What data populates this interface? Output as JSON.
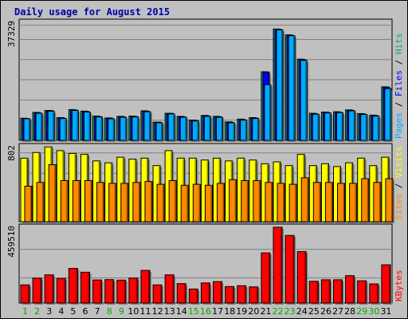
{
  "chart_data": [
    {
      "type": "bar",
      "panel": "pages-files-hits",
      "ymax_label": "37329",
      "ymax": 37329,
      "series_labels": [
        "Pages",
        "Files",
        "Hits"
      ],
      "series_colors": [
        "#00aaff",
        "#0000ff",
        "#00aa77"
      ],
      "categories": [
        "1",
        "2",
        "3",
        "4",
        "5",
        "6",
        "7",
        "8",
        "9",
        "10",
        "11",
        "12",
        "13",
        "14",
        "15",
        "16",
        "17",
        "18",
        "19",
        "20",
        "21",
        "22",
        "23",
        "24",
        "25",
        "26",
        "27",
        "28",
        "29",
        "30",
        "31"
      ],
      "series": [
        {
          "name": "Hits",
          "values": [
            7200,
            9100,
            9700,
            7400,
            10000,
            9500,
            7900,
            7300,
            7800,
            7900,
            9600,
            5900,
            8800,
            7800,
            6600,
            8100,
            7800,
            6000,
            6900,
            7400,
            22300,
            36200,
            34300,
            26400,
            8800,
            9200,
            9300,
            9900,
            8700,
            8200,
            17400
          ]
        },
        {
          "name": "Files",
          "values": [
            7100,
            9000,
            9700,
            7300,
            9900,
            9400,
            7800,
            7200,
            7700,
            7800,
            9500,
            5900,
            8800,
            7700,
            6500,
            8000,
            7700,
            5900,
            6800,
            7300,
            22200,
            36100,
            34200,
            26300,
            8700,
            9100,
            9200,
            9800,
            8600,
            8100,
            17300
          ]
        },
        {
          "name": "Pages",
          "values": [
            7000,
            8800,
            9500,
            7100,
            9700,
            9200,
            7600,
            7000,
            7500,
            7600,
            9300,
            5700,
            8600,
            7500,
            6300,
            7800,
            7500,
            5700,
            6600,
            7100,
            18100,
            35900,
            34000,
            26000,
            8500,
            8900,
            9000,
            9600,
            8400,
            7900,
            16800
          ]
        }
      ]
    },
    {
      "type": "bar",
      "panel": "visits-sites",
      "ymax_label": "802",
      "ymax": 802,
      "series_labels": [
        "Sites",
        "Visits"
      ],
      "series_colors": [
        "#ff8800",
        "#ffff00"
      ],
      "categories": [
        "1",
        "2",
        "3",
        "4",
        "5",
        "6",
        "7",
        "8",
        "9",
        "10",
        "11",
        "12",
        "13",
        "14",
        "15",
        "16",
        "17",
        "18",
        "19",
        "20",
        "21",
        "22",
        "23",
        "24",
        "25",
        "26",
        "27",
        "28",
        "29",
        "30",
        "31"
      ],
      "series": [
        {
          "name": "Visits",
          "values": [
            680,
            740,
            800,
            760,
            730,
            720,
            650,
            630,
            690,
            670,
            680,
            600,
            760,
            680,
            680,
            660,
            680,
            650,
            680,
            660,
            620,
            640,
            600,
            720,
            600,
            620,
            590,
            630,
            680,
            600,
            690
          ]
        },
        {
          "name": "Sites",
          "values": [
            380,
            420,
            610,
            440,
            440,
            440,
            420,
            410,
            410,
            420,
            430,
            400,
            440,
            390,
            400,
            390,
            410,
            450,
            440,
            440,
            420,
            410,
            400,
            470,
            420,
            420,
            410,
            410,
            460,
            420,
            460
          ]
        }
      ]
    },
    {
      "type": "bar",
      "panel": "kbytes",
      "ymax_label": "459510",
      "ymax": 459510,
      "series_labels": [
        "KBytes"
      ],
      "series_colors": [
        "#ff0000"
      ],
      "categories": [
        "1",
        "2",
        "3",
        "4",
        "5",
        "6",
        "7",
        "8",
        "9",
        "10",
        "11",
        "12",
        "13",
        "14",
        "15",
        "16",
        "17",
        "18",
        "19",
        "20",
        "21",
        "22",
        "23",
        "24",
        "25",
        "26",
        "27",
        "28",
        "29",
        "30",
        "31"
      ],
      "series": [
        {
          "name": "KBytes",
          "values": [
            110000,
            151000,
            171000,
            149000,
            210000,
            187000,
            140000,
            142000,
            139000,
            152000,
            198000,
            110000,
            171000,
            118000,
            85000,
            122000,
            130000,
            100000,
            105000,
            98000,
            304000,
            460000,
            410000,
            312000,
            132000,
            141000,
            141000,
            166000,
            135000,
            116000,
            232000
          ]
        }
      ]
    }
  ],
  "page": {
    "title": "Daily usage for August 2015",
    "weekend_days": [
      "1",
      "2",
      "8",
      "9",
      "15",
      "16",
      "22",
      "23",
      "29",
      "30"
    ],
    "label_color_weekday": "#000000",
    "label_color_weekend": "#00aa00"
  }
}
